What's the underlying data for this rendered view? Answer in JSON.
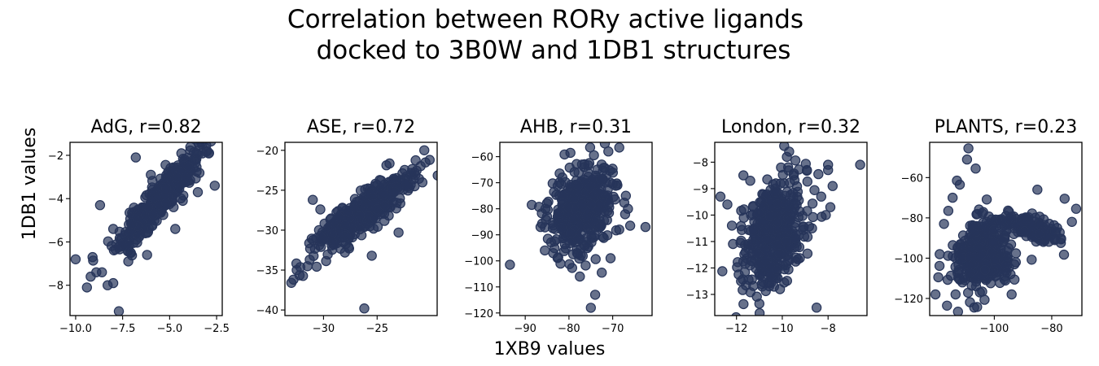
{
  "figure": {
    "title_line1": "Correlation between RORy active ligands",
    "title_line2": "docked to 3B0W and 1DB1 structures",
    "xlabel": "1XB9 values",
    "ylabel": "1DB1 values"
  },
  "colors": {
    "marker": "#27355a"
  },
  "chart_data": [
    {
      "type": "scatter",
      "title": "AdG, r=0.82",
      "r": 0.82,
      "xlim": [
        -10.3,
        -2.2
      ],
      "ylim": [
        -9.4,
        -1.4
      ],
      "xticks": [
        -10.0,
        -7.5,
        -5.0,
        -2.5
      ],
      "xtick_labels": [
        "−10.0",
        "−7.5",
        "−5.0",
        "−2.5"
      ],
      "yticks": [
        -8,
        -6,
        -4,
        -2
      ],
      "ytick_labels": [
        "−8",
        "−6",
        "−4",
        "−2"
      ],
      "cloud": {
        "cx": -5.6,
        "cy": -4.1,
        "sx": 1.0,
        "sy": 1.05,
        "rho": 0.92,
        "n": 460,
        "seed": 11
      },
      "outliers": [
        [
          -10.0,
          -6.8
        ],
        [
          -9.4,
          -8.1
        ],
        [
          -9.2,
          -7.6
        ],
        [
          -9.1,
          -6.7
        ],
        [
          -8.9,
          -7.4
        ],
        [
          -8.6,
          -7.4
        ],
        [
          -8.3,
          -8.0
        ],
        [
          -8.0,
          -7.9
        ],
        [
          -8.7,
          -4.3
        ],
        [
          -8.0,
          -5.4
        ],
        [
          -7.7,
          -9.2
        ],
        [
          -7.5,
          -6.2
        ],
        [
          -7.2,
          -6.9
        ],
        [
          -6.2,
          -6.6
        ],
        [
          -6.8,
          -2.1
        ],
        [
          -6.0,
          -2.9
        ],
        [
          -3.0,
          -1.8
        ],
        [
          -2.9,
          -1.9
        ],
        [
          -2.6,
          -3.4
        ],
        [
          -3.5,
          -3.7
        ],
        [
          -4.3,
          -4.1
        ],
        [
          -4.7,
          -5.4
        ]
      ]
    },
    {
      "type": "scatter",
      "title": "ASE, r=0.72",
      "r": 0.72,
      "xlim": [
        -33.6,
        -19.4
      ],
      "ylim": [
        -40.7,
        -19.0
      ],
      "xticks": [
        -30,
        -25
      ],
      "xtick_labels": [
        "−30",
        "−25"
      ],
      "yticks": [
        -40,
        -35,
        -30,
        -25,
        -20
      ],
      "ytick_labels": [
        "−40",
        "−35",
        "−30",
        "−25",
        "−20"
      ],
      "cloud": {
        "cx": -26.5,
        "cy": -28.0,
        "sx": 2.1,
        "sy": 2.3,
        "rho": 0.86,
        "n": 460,
        "seed": 23
      },
      "outliers": [
        [
          -33.0,
          -36.6
        ],
        [
          -32.8,
          -36.2
        ],
        [
          -32.5,
          -35.0
        ],
        [
          -26.2,
          -39.8
        ],
        [
          -31.0,
          -26.2
        ],
        [
          -30.3,
          -27.4
        ],
        [
          -20.6,
          -20.0
        ],
        [
          -20.1,
          -21.2
        ],
        [
          -21.5,
          -24.5
        ],
        [
          -25.5,
          -33.2
        ],
        [
          -28.0,
          -32.8
        ],
        [
          -23.0,
          -30.3
        ]
      ]
    },
    {
      "type": "scatter",
      "title": "AHB, r=0.31",
      "r": 0.31,
      "xlim": [
        -95.8,
        -61.0
      ],
      "ylim": [
        -121.0,
        -54.5
      ],
      "xticks": [
        -90,
        -80,
        -70
      ],
      "xtick_labels": [
        "−90",
        "−80",
        "−70"
      ],
      "yticks": [
        -120,
        -110,
        -100,
        -90,
        -80,
        -70,
        -60
      ],
      "ytick_labels": [
        "−120",
        "−110",
        "−100",
        "−90",
        "−80",
        "−70",
        "−60"
      ],
      "cloud": {
        "cx": -77.0,
        "cy": -80.0,
        "sx": 3.4,
        "sy": 8.0,
        "rho": 0.3,
        "n": 460,
        "seed": 37
      },
      "outliers": [
        [
          -93.5,
          -101.5
        ],
        [
          -88.5,
          -78.5
        ],
        [
          -74.0,
          -113.0
        ],
        [
          -75.0,
          -118.0
        ],
        [
          -68.5,
          -56.5
        ],
        [
          -71.0,
          -58.0
        ],
        [
          -70.0,
          -70.5
        ],
        [
          -67.0,
          -75.0
        ],
        [
          -62.5,
          -87.0
        ],
        [
          -66.0,
          -86.5
        ],
        [
          -68.5,
          -88.0
        ],
        [
          -70.5,
          -99.0
        ],
        [
          -77.5,
          -106.0
        ],
        [
          -86.5,
          -87.0
        ],
        [
          -85.5,
          -96.0
        ],
        [
          -81.5,
          -68.0
        ],
        [
          -72.5,
          -104.5
        ],
        [
          -85.0,
          -83.0
        ],
        [
          -66.5,
          -80.0
        ]
      ]
    },
    {
      "type": "scatter",
      "title": "London, r=0.32",
      "r": 0.32,
      "xlim": [
        -12.95,
        -6.3
      ],
      "ylim": [
        -13.8,
        -7.25
      ],
      "xticks": [
        -12,
        -10,
        -8
      ],
      "xtick_labels": [
        "−12",
        "−10",
        "−8"
      ],
      "yticks": [
        -13,
        -12,
        -11,
        -10,
        -9,
        -8
      ],
      "ytick_labels": [
        "−13",
        "−12",
        "−11",
        "−10",
        "−9",
        "−8"
      ],
      "cloud": {
        "cx": -10.4,
        "cy": -10.7,
        "sx": 0.65,
        "sy": 1.0,
        "rho": 0.3,
        "n": 470,
        "seed": 53
      },
      "outliers": [
        [
          -12.7,
          -9.3
        ],
        [
          -12.4,
          -9.6
        ],
        [
          -12.2,
          -10.4
        ],
        [
          -6.6,
          -8.1
        ],
        [
          -8.0,
          -8.1
        ],
        [
          -8.0,
          -8.3
        ],
        [
          -7.8,
          -8.9
        ],
        [
          -9.7,
          -7.6
        ],
        [
          -9.8,
          -7.8
        ],
        [
          -9.5,
          -8.5
        ],
        [
          -11.4,
          -8.7
        ],
        [
          -11.7,
          -8.5
        ],
        [
          -7.9,
          -9.7
        ],
        [
          -8.1,
          -10.0
        ],
        [
          -8.5,
          -13.5
        ],
        [
          -11.0,
          -13.35
        ],
        [
          -10.1,
          -12.8
        ],
        [
          -11.8,
          -12.5
        ],
        [
          -8.7,
          -10.5
        ],
        [
          -8.3,
          -9.3
        ]
      ]
    },
    {
      "type": "scatter",
      "title": "PLANTS, r=0.23",
      "r": 0.23,
      "xlim": [
        -122.5,
        -69.5
      ],
      "ylim": [
        -128.5,
        -42.5
      ],
      "xticks": [
        -100,
        -80
      ],
      "xtick_labels": [
        "−100",
        "−80"
      ],
      "yticks": [
        -120,
        -100,
        -80,
        -60
      ],
      "ytick_labels": [
        "−120",
        "−100",
        "−80",
        "−60"
      ],
      "cloud": {
        "cx": -104.0,
        "cy": -97.0,
        "sx": 5.0,
        "sy": 9.0,
        "rho": 0.25,
        "n": 400,
        "seed": 71
      },
      "extra_clouds": [
        {
          "cx": -87.0,
          "cy": -85.0,
          "sx": 5.0,
          "sy": 4.0,
          "rho": -0.6,
          "n": 130,
          "seed": 83
        }
      ],
      "outliers": [
        [
          -109.0,
          -45.5
        ],
        [
          -109.5,
          -51.0
        ],
        [
          -106.5,
          -55.5
        ],
        [
          -113.0,
          -61.5
        ],
        [
          -112.0,
          -63.5
        ],
        [
          -114.5,
          -70.0
        ],
        [
          -119.5,
          -109.5
        ],
        [
          -120.5,
          -118.0
        ],
        [
          -113.5,
          -118.0
        ],
        [
          -107.0,
          -124.5
        ],
        [
          -85.0,
          -66.0
        ],
        [
          -75.5,
          -70.5
        ],
        [
          -71.5,
          -75.5
        ],
        [
          -73.0,
          -82.0
        ],
        [
          -117.5,
          -83.0
        ],
        [
          -116.0,
          -76.5
        ],
        [
          -105.0,
          -117.0
        ],
        [
          -96.5,
          -110.5
        ],
        [
          -92.5,
          -102.0
        ],
        [
          -119.0,
          -98.0
        ]
      ]
    }
  ]
}
